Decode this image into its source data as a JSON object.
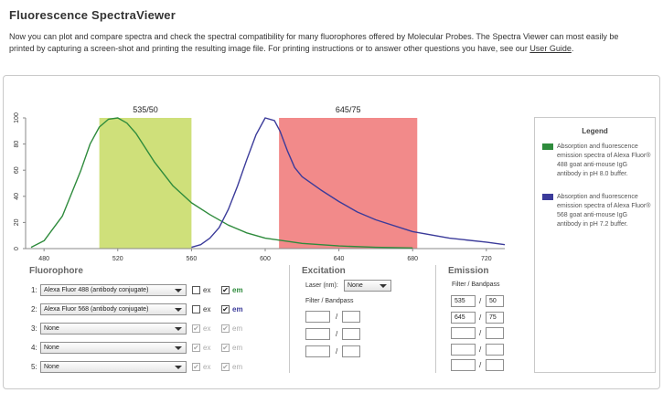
{
  "page": {
    "title": "Fluorescence SpectraViewer",
    "intro_text": "Now you can plot and compare spectra and check the spectral compatibility for many fluorophores offered by Molecular Probes. The Spectra Viewer can most easily be printed by capturing a screen-shot and printing the resulting image file. For printing instructions or to answer other questions you have, see our ",
    "intro_link": "User Guide",
    "intro_end": "."
  },
  "chart_data": {
    "type": "line",
    "xlim": [
      470,
      730
    ],
    "ylim": [
      0,
      100
    ],
    "x_ticks": [
      "480",
      "520",
      "560",
      "600",
      "640",
      "680",
      "720"
    ],
    "y_ticks": [
      "0",
      "20",
      "40",
      "60",
      "80",
      "100"
    ],
    "bands": [
      {
        "label": "535/50",
        "start": 510,
        "end": 560,
        "color": "#cfe07a"
      },
      {
        "label": "645/75",
        "start": 607.5,
        "end": 682.5,
        "color": "#f28a8a"
      }
    ],
    "series": [
      {
        "color": "#2e8b3c",
        "x": [
          473,
          480,
          490,
          500,
          505,
          510,
          515,
          520,
          525,
          530,
          540,
          550,
          560,
          570,
          580,
          590,
          600,
          620,
          640,
          660,
          680
        ],
        "y": [
          1,
          6,
          25,
          60,
          80,
          93,
          99,
          100,
          96,
          88,
          66,
          48,
          35,
          26,
          18,
          12,
          8,
          4,
          2,
          1,
          0.5
        ]
      },
      {
        "color": "#3b3b9a",
        "x": [
          560,
          565,
          570,
          575,
          580,
          585,
          590,
          595,
          600,
          605,
          608,
          612,
          616,
          620,
          630,
          640,
          650,
          660,
          680,
          700,
          720,
          730
        ],
        "y": [
          1,
          3,
          8,
          16,
          30,
          48,
          68,
          87,
          100,
          98,
          90,
          75,
          62,
          55,
          45,
          36,
          28,
          22,
          13,
          8,
          5,
          3
        ]
      }
    ]
  },
  "legend": {
    "title": "Legend",
    "items": [
      {
        "color": "#2e8b3c",
        "text": "Absorption and fluorescence emission spectra of Alexa Fluor® 488 goat anti-mouse IgG antibody in pH 8.0 buffer."
      },
      {
        "color": "#3b3b9a",
        "text": "Absorption and fluorescence emission spectra of Alexa Fluor® 568 goat anti-mouse IgG antibody in pH 7.2 buffer."
      }
    ]
  },
  "fluorophore": {
    "heading": "Fluorophore",
    "ex_label": "ex",
    "em_label": "em",
    "rows": [
      {
        "num": "1:",
        "value": "Alexa Fluor 488 (antibody conjugate)",
        "ex": "",
        "em": "✔"
      },
      {
        "num": "2:",
        "value": "Alexa Fluor 568 (antibody conjugate)",
        "ex": "",
        "em": "✔"
      },
      {
        "num": "3:",
        "value": "None",
        "ex": "✔",
        "em": "✔"
      },
      {
        "num": "4:",
        "value": "None",
        "ex": "✔",
        "em": "✔"
      },
      {
        "num": "5:",
        "value": "None",
        "ex": "✔",
        "em": "✔"
      }
    ]
  },
  "excitation": {
    "heading": "Excitation",
    "laser_label": "Laser (nm):",
    "laser_value": "None",
    "filter_label": "Filter / Bandpass",
    "rows": [
      {
        "a": "",
        "b": ""
      },
      {
        "a": "",
        "b": ""
      },
      {
        "a": "",
        "b": ""
      }
    ]
  },
  "emission": {
    "heading": "Emission",
    "filter_label": "Filter / Bandpass",
    "rows": [
      {
        "a": "535",
        "b": "50"
      },
      {
        "a": "645",
        "b": "75"
      },
      {
        "a": "",
        "b": ""
      },
      {
        "a": "",
        "b": ""
      },
      {
        "a": "",
        "b": ""
      }
    ]
  },
  "slash": "/"
}
